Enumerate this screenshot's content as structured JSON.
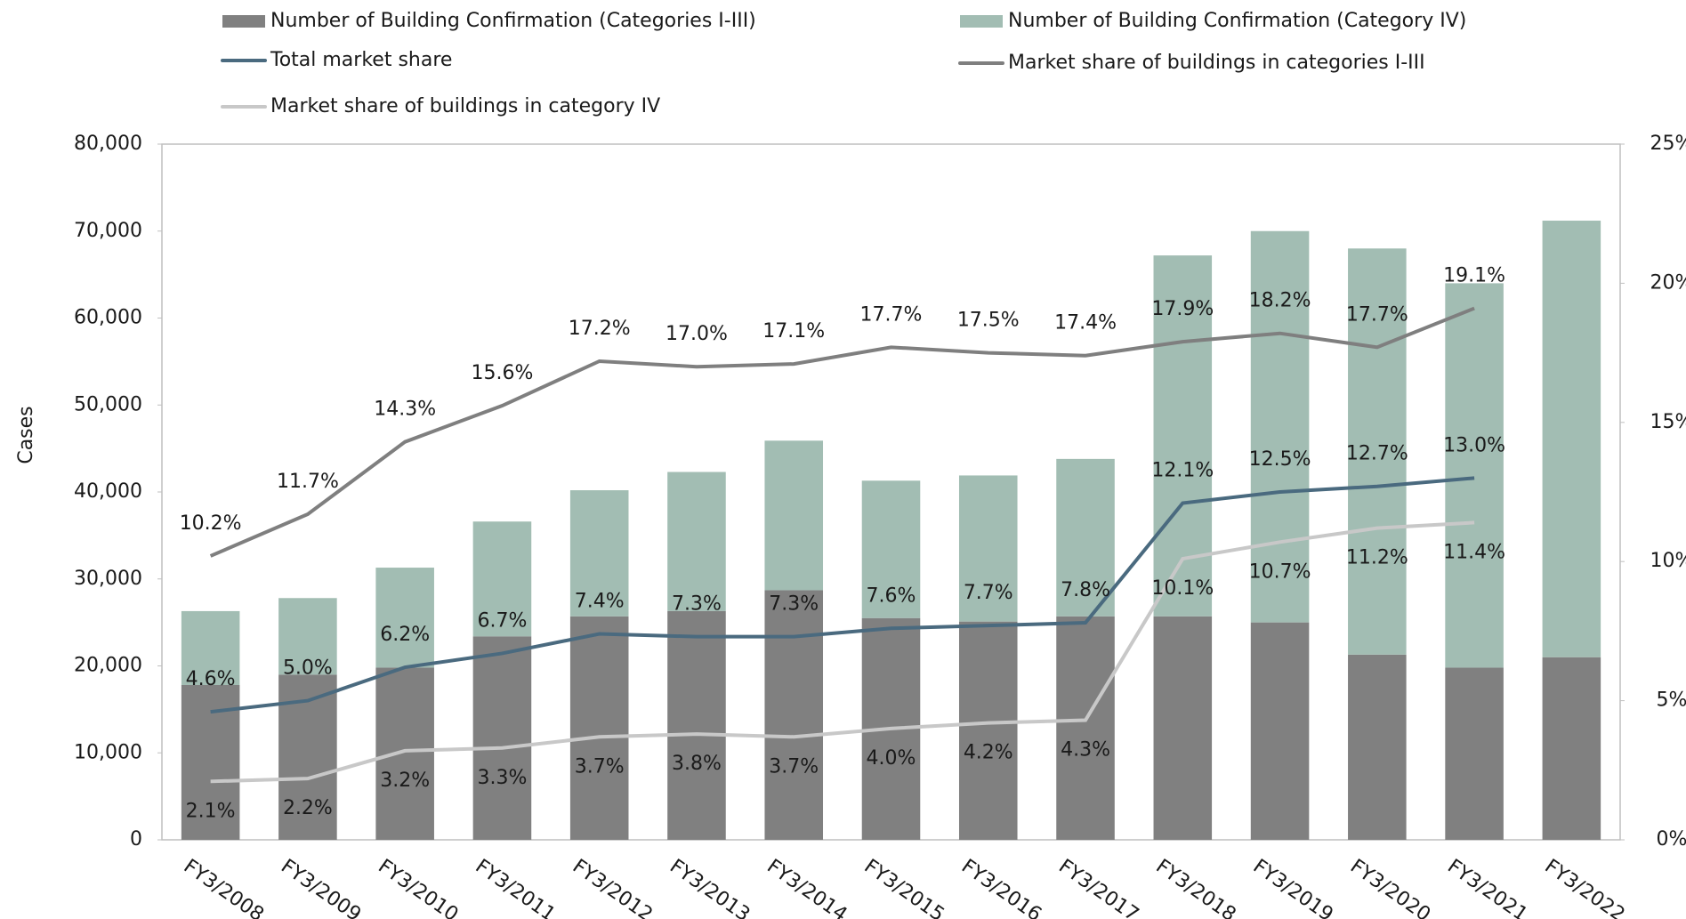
{
  "chart_data": {
    "type": "combo",
    "y_label": "Cases",
    "categories": [
      "FY3/2008",
      "FY3/2009",
      "FY3/2010",
      "FY3/2011",
      "FY3/2012",
      "FY3/2013",
      "FY3/2014",
      "FY3/2015",
      "FY3/2016",
      "FY3/2017",
      "FY3/2018",
      "FY3/2019",
      "FY3/2020",
      "FY3/2021",
      "FY3/2022"
    ],
    "ylim": [
      0,
      80000
    ],
    "yticks": [
      0,
      {
        "value": 10000,
        "label": "10,000"
      },
      {
        "value": 20000,
        "label": "20,000"
      },
      {
        "value": 30000,
        "label": "30,000"
      },
      {
        "value": 40000,
        "label": "40,000"
      },
      {
        "value": 50000,
        "label": "50,000"
      },
      {
        "value": 60000,
        "label": "60,000"
      },
      {
        "value": 70000,
        "label": "70,000"
      },
      {
        "value": 80000,
        "label": "80,000"
      }
    ],
    "y2lim": [
      0,
      25
    ],
    "y2ticks": [
      {
        "value": 0,
        "label": "0%"
      },
      {
        "value": 5,
        "label": "5%"
      },
      {
        "value": 10,
        "label": "10%"
      },
      {
        "value": 15,
        "label": "15%"
      },
      {
        "value": 20,
        "label": "20%"
      },
      {
        "value": 25,
        "label": "25%"
      }
    ],
    "series": [
      {
        "name": "Number of Building Confirmation (Categories Ⅰ-III)",
        "type": "bar",
        "color": "#808080",
        "values": [
          17800,
          19000,
          19800,
          23400,
          25700,
          26300,
          28700,
          25500,
          25100,
          25700,
          25700,
          25000,
          21300,
          19800,
          21000
        ]
      },
      {
        "name": "Number of Building Confirmation (Category IV)",
        "type": "bar",
        "color": "#a2bdb3",
        "values": [
          8500,
          8800,
          11500,
          13200,
          14500,
          16000,
          17200,
          15800,
          16800,
          18100,
          41500,
          45000,
          46700,
          44200,
          50200
        ]
      },
      {
        "name": "Total market share",
        "type": "line",
        "axis": "y2",
        "color": "#4a6a7f",
        "label_pos": "above",
        "values": [
          4.6,
          5.0,
          6.2,
          6.7,
          7.4,
          7.3,
          7.3,
          7.6,
          7.7,
          7.8,
          12.1,
          12.5,
          12.7,
          13.0,
          null
        ],
        "value_labels": [
          "4.6%",
          "5.0%",
          "6.2%",
          "6.7%",
          "7.4%",
          "7.3%",
          "7.3%",
          "7.6%",
          "7.7%",
          "7.8%",
          "12.1%",
          "12.5%",
          "12.7%",
          "13.0%",
          null
        ]
      },
      {
        "name": "Market share of buildings in categories Ⅰ-III",
        "type": "line",
        "axis": "y2",
        "color": "#7f7f7f",
        "label_pos": "above",
        "values": [
          10.2,
          11.7,
          14.3,
          15.6,
          17.2,
          17.0,
          17.1,
          17.7,
          17.5,
          17.4,
          17.9,
          18.2,
          17.7,
          19.1,
          null
        ],
        "value_labels": [
          "10.2%",
          "11.7%",
          "14.3%",
          "15.6%",
          "17.2%",
          "17.0%",
          "17.1%",
          "17.7%",
          "17.5%",
          "17.4%",
          "17.9%",
          "18.2%",
          "17.7%",
          "19.1%",
          null
        ]
      },
      {
        "name": "Market share of buildings in category IV",
        "type": "line",
        "axis": "y2",
        "color": "#c8c8c8",
        "label_pos": "below",
        "values": [
          2.1,
          2.2,
          3.2,
          3.3,
          3.7,
          3.8,
          3.7,
          4.0,
          4.2,
          4.3,
          10.1,
          10.7,
          11.2,
          11.4,
          null
        ],
        "value_labels": [
          "2.1%",
          "2.2%",
          "3.2%",
          "3.3%",
          "3.7%",
          "3.8%",
          "3.7%",
          "4.0%",
          "4.2%",
          "4.3%",
          "10.1%",
          "10.7%",
          "11.2%",
          "11.4%",
          null
        ]
      }
    ]
  }
}
